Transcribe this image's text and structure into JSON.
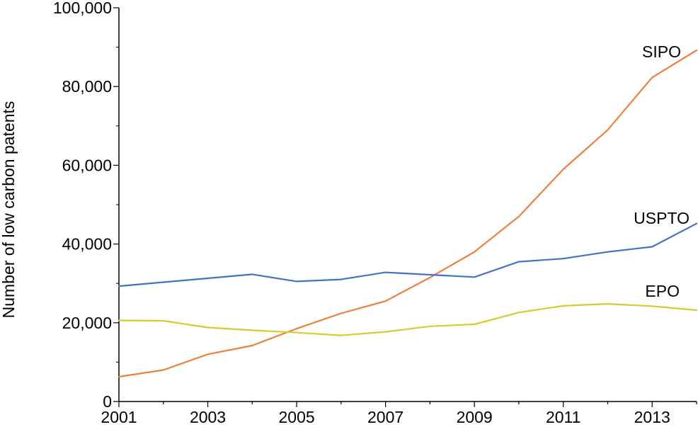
{
  "chart_data": {
    "type": "line",
    "title": "",
    "xlabel": "",
    "ylabel": "Number of low carbon patents",
    "x": [
      2001,
      2002,
      2003,
      2004,
      2005,
      2006,
      2007,
      2008,
      2009,
      2010,
      2011,
      2012,
      2013,
      2014
    ],
    "xlim": [
      2001,
      2014
    ],
    "ylim": [
      0,
      100000
    ],
    "x_ticks": [
      "2001",
      "2003",
      "2005",
      "2007",
      "2009",
      "2011",
      "2013"
    ],
    "y_ticks": [
      "0",
      "20,000",
      "40,000",
      "60,000",
      "80,000",
      "100,000"
    ],
    "grid": false,
    "legend": "none (series labelled directly on the chart)",
    "series": [
      {
        "name": "SIPO",
        "color": "#f07f3c",
        "values": [
          6300,
          8000,
          12000,
          14200,
          18500,
          22400,
          25500,
          31500,
          38000,
          47000,
          59000,
          69000,
          82300,
          89200
        ]
      },
      {
        "name": "USPTO",
        "color": "#4472c4",
        "values": [
          29300,
          30300,
          31300,
          32300,
          30500,
          31000,
          32800,
          32200,
          31600,
          35500,
          36300,
          38000,
          39300,
          45200
        ]
      },
      {
        "name": "EPO",
        "color": "#d6cc2e",
        "values": [
          20600,
          20500,
          18800,
          18100,
          17500,
          16800,
          17700,
          19100,
          19600,
          22600,
          24300,
          24800,
          24200,
          23200
        ]
      }
    ]
  }
}
